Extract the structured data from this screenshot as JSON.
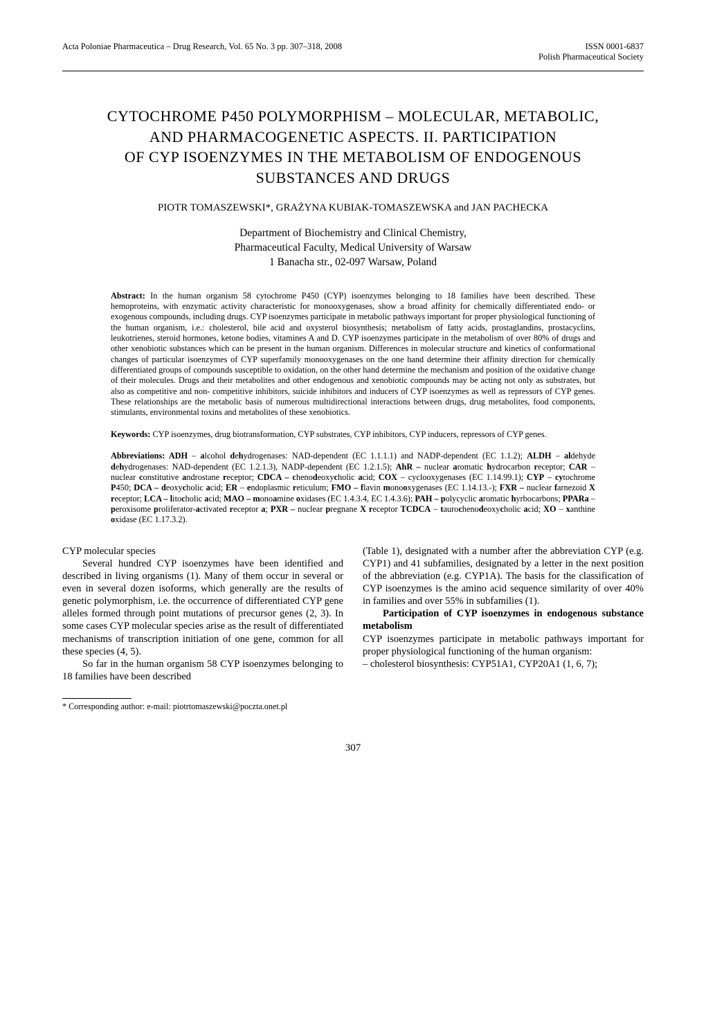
{
  "header": {
    "journal_left": "Acta Poloniae Pharmaceutica – Drug Research, Vol. 65 No. 3 pp. 307–318, 2008",
    "issn": "ISSN 0001-6837",
    "society": "Polish Pharmaceutical Society"
  },
  "title_lines": [
    "CYTOCHROME P450 POLYMORPHISM – MOLECULAR, METABOLIC,",
    "AND PHARMACOGENETIC ASPECTS. II. PARTICIPATION",
    "OF CYP ISOENZYMES IN THE METABOLISM OF ENDOGENOUS",
    "SUBSTANCES AND DRUGS"
  ],
  "authors": "PIOTR TOMASZEWSKI*, GRAŻYNA KUBIAK-TOMASZEWSKA and JAN PACHECKA",
  "affiliation_lines": [
    "Department of Biochemistry and Clinical Chemistry,",
    "Pharmaceutical Faculty, Medical University of Warsaw",
    "1 Banacha str., 02-097 Warsaw, Poland"
  ],
  "abstract": {
    "label": "Abstract:",
    "text": " In the human organism 58 cytochrome P450 (CYP) isoenzymes belonging to 18 families have been described. These hemoproteins, with enzymatic activity characteristic for monooxygenases, show a broad affinity for chemically differentiated endo- or exogenous compounds, including drugs. CYP isoenzymes participate in metabolic pathways important for proper physiological functioning of the human organism, i.e.: cholesterol, bile acid and oxysterol biosynthesis; metabolism of fatty acids, prostaglandins, prostacyclins, leukotrienes, steroid hormones, ketone bodies, vitamines A and D. CYP isoenzymes participate in the metabolism of over 80% of drugs and other xenobiotic substances which can be present in the human organism. Differences in molecular structure and kinetics of conformational changes of particular isoenzymes of CYP superfamily monooxygenases on the one hand determine their affinity direction for chemically differentiated groups of compounds susceptible to oxidation, on the other hand determine the mechanism and position of the oxidative change of their molecules. Drugs and their metabolites and other endogenous and xenobiotic compounds may be acting not only as substrates, but also as competitive and non- competitive inhibitors, suicide inhibitors and inducers of CYP isoenzymes as well as repressors of CYP genes. These relationships are the metabolic basis of numerous multidirectional interactions between drugs, drug metabolites, food components, stimulants, environmental toxins and metabolites of these xenobiotics."
  },
  "keywords": {
    "label": "Keywords:",
    "text": " CYP isoenzymes, drug biotransformation, CYP substrates, CYP inhibitors, CYP inducers, repressors of CYP genes."
  },
  "abbreviations_html": "<b>Abbreviations: ADH</b> – <b>a</b>lcohol <b>d</b>e<b>h</b>ydrogenases: NAD-dependent (EC 1.1.1.1) and NADP-dependent (EC 1.1.2); <b>ALDH</b> – <b>al</b>dehyde <b>d</b>e<b>h</b>ydrogenases: NAD-dependent (EC 1.2.1.3), NADP-dependent (EC 1.2.1.5); <b>AhR –</b> nuclear <b>a</b>romatic <b>h</b>ydrocarbon <b>r</b>eceptor; <b>CAR</b> – nuclear <b>c</b>onstitutive <b>a</b>ndrostane <b>r</b>eceptor; <b>CDCA – c</b>heno<b>d</b>eoxy<b>c</b>holic <b>a</b>cid; <b>COX</b> – cyclooxygenases (EC 1.14.99.1); <b>CYP</b> – <b>cy</b>tochrome <b>P</b>450; <b>DCA – d</b>eoxy<b>c</b>holic <b>a</b>cid; <b>ER</b> – <b>e</b>ndoplasmic <b>r</b>eticulum; <b>FMO – f</b>lavin <b>m</b>ono<b>o</b>xygenases (EC 1.14.13.-); <b>FXR –</b> nuclear <b>f</b>arnezoid <b>X r</b>eceptor; <b>LCA – l</b>ito<b>c</b>holic <b>a</b>cid; <b>MAO – m</b>ono<b>a</b>mine <b>o</b>xidases (EC 1.4.3.4, EC 1.4.3.6); <b>PAH – p</b>olycyclic <b>a</b>romatic <b>h</b>yrbocarbons; <b>PPARa</b> – <b>p</b>eroxisome <b>p</b>roliferator-<b>a</b>ctivated <b>r</b>eceptor <b>a</b>; <b>PXR –</b> nuclear <b>p</b>regnane <b>X r</b>eceptor <b>TCDCA</b> – <b>t</b>auro<b>c</b>heno<b>d</b>eoxy<b>c</b>holic <b>a</b>cid; <b>XO</b> – <b>x</b>anthine <b>o</b>xidase (EC 1.17.3.2).",
  "body": {
    "left": {
      "heading": "CYP molecular species",
      "p1": "Several hundred CYP isoenzymes have been identified and described in living organisms (1). Many of them occur in several or even in several dozen isoforms, which generally are the results of genetic polymorphism, i.e. the occurrence of differentiated CYP gene alleles formed through point mutations of precursor genes (2, 3). In some cases CYP molecular species arise as the result of differentiated mechanisms of transcription initiation of one gene, common for all these species (4, 5).",
      "p2": "So far in the human organism 58 CYP isoenzymes belonging to 18 families have been described"
    },
    "right": {
      "p1": "(Table 1), designated with a number after the abbreviation CYP (e.g. CYP1) and 41 subfamilies, designated by a letter in the next position of the abbreviation (e.g. CYP1A). The basis for the classification of CYP isoenzymes is the amino acid sequence similarity of over 40% in families and over 55% in subfamilies (1).",
      "heading": "Participation of CYP isoenzymes in endogenous substance metabolism",
      "p2": "CYP isoenzymes participate in metabolic pathways important for proper physiological functioning of the human organism:",
      "p3": "– cholesterol biosynthesis: CYP51A1, CYP20A1 (1, 6, 7);"
    }
  },
  "footnote": "* Corresponding author: e-mail: piotrtomaszewski@poczta.onet.pl",
  "page_number": "307"
}
